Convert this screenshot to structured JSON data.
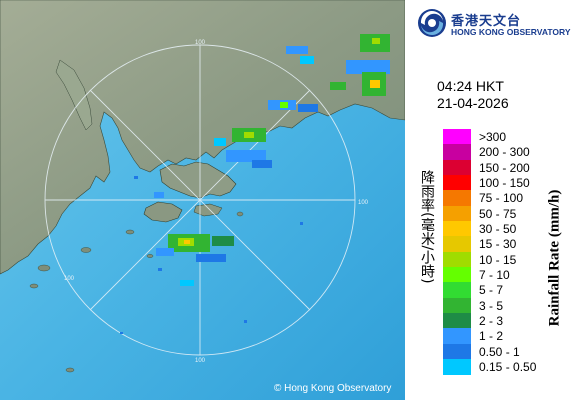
{
  "header": {
    "org_name_zh": "香港天文台",
    "org_name_en": "HONG KONG OBSERVATORY",
    "logo_icon": "hko-logo-icon"
  },
  "timestamp": {
    "time": "04:24 HKT",
    "date": "21-04-2026"
  },
  "legend": {
    "title_zh": "降雨率(毫米/小時)",
    "title_en": "Rainfall Rate (mm/h)",
    "items": [
      {
        "label": ">300",
        "color": "#ff00ff"
      },
      {
        "label": "200 - 300",
        "color": "#c800a0"
      },
      {
        "label": "150 - 200",
        "color": "#dc0032"
      },
      {
        "label": "100 - 150",
        "color": "#ff0000"
      },
      {
        "label": "75 - 100",
        "color": "#f57800"
      },
      {
        "label": "50 - 75",
        "color": "#f5a000"
      },
      {
        "label": "30 - 50",
        "color": "#ffc800"
      },
      {
        "label": "15 - 30",
        "color": "#e6c800"
      },
      {
        "label": "10 - 15",
        "color": "#a0dc00"
      },
      {
        "label": "7 - 10",
        "color": "#64ff00"
      },
      {
        "label": "5 - 7",
        "color": "#32dc32"
      },
      {
        "label": "3 - 5",
        "color": "#32b432"
      },
      {
        "label": "2 - 3",
        "color": "#1e8c46"
      },
      {
        "label": "1 - 2",
        "color": "#3296ff"
      },
      {
        "label": "0.50 - 1",
        "color": "#1e78e6"
      },
      {
        "label": "0.15 - 0.50",
        "color": "#00c8ff"
      }
    ]
  },
  "map": {
    "range_ring_labels": [
      "100",
      "100",
      "100",
      "100"
    ],
    "sea_color": "#4ab4e6",
    "land_color": "#8a9a80"
  },
  "footer": {
    "copyright": "© Hong Kong Observatory"
  }
}
